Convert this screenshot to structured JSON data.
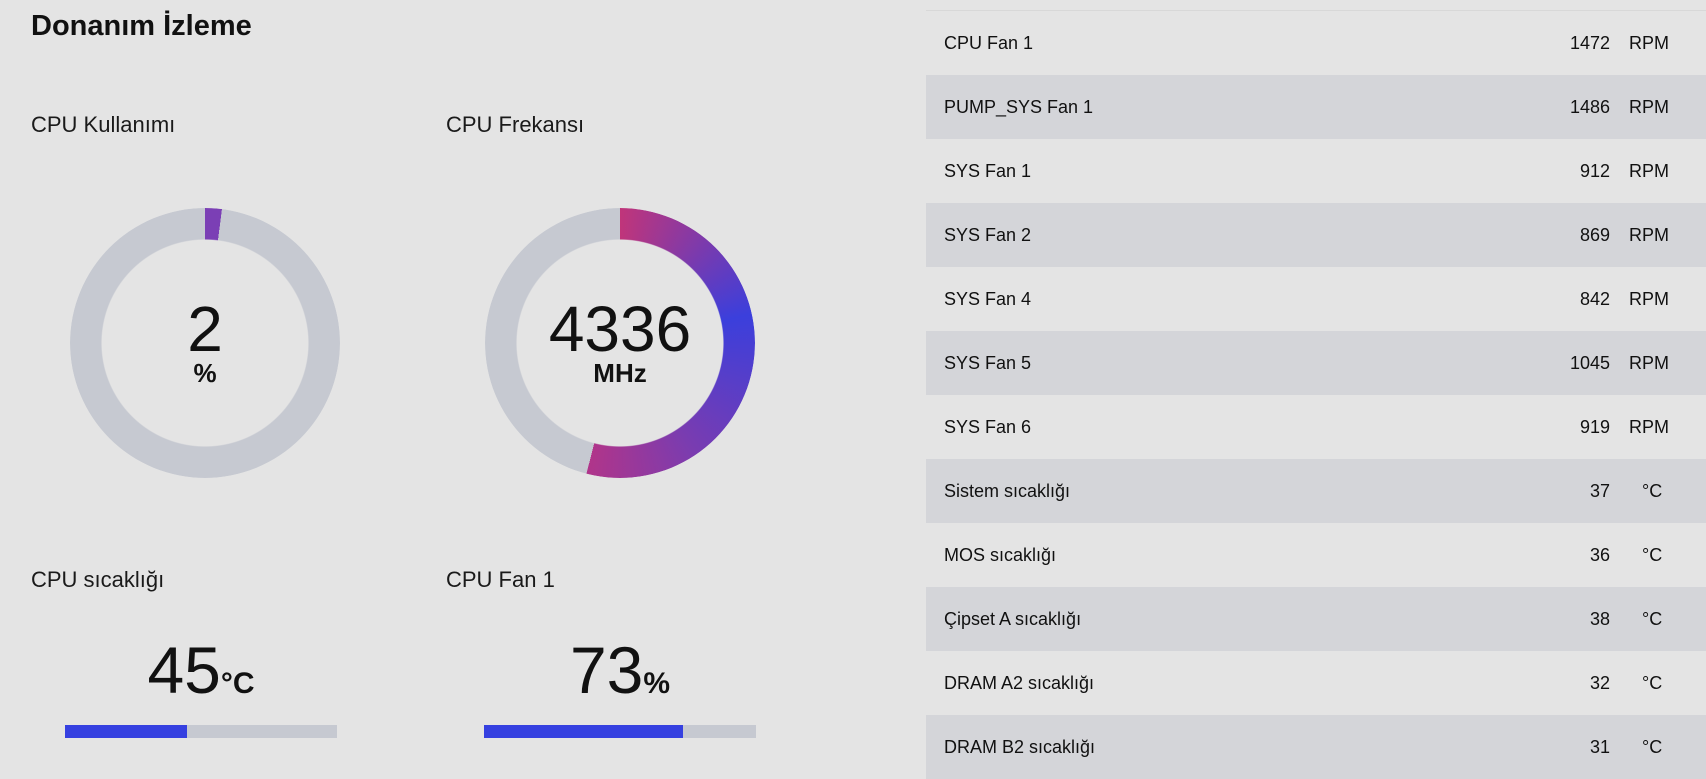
{
  "title": "Donanım İzleme",
  "cpu_usage": {
    "label": "CPU Kullanımı",
    "value": "2",
    "unit": "%",
    "percent": 2,
    "color": "#7b3fb5"
  },
  "cpu_freq": {
    "label": "CPU Frekansı",
    "value": "4336",
    "unit": "MHz",
    "percent": 54,
    "gradient": [
      "#c0357a",
      "#3b3fdc",
      "#7a3cb0",
      "#b0358a"
    ]
  },
  "cpu_temp": {
    "label": "CPU sıcaklığı",
    "value": "45",
    "unit": "°C",
    "percent": 45
  },
  "cpu_fan": {
    "label": "CPU Fan 1",
    "value": "73",
    "unit": "%",
    "percent": 73
  },
  "sensors": [
    {
      "name": "CPU Fan 1",
      "value": "1472",
      "unit": "RPM"
    },
    {
      "name": "PUMP_SYS Fan 1",
      "value": "1486",
      "unit": "RPM"
    },
    {
      "name": "SYS Fan 1",
      "value": "912",
      "unit": "RPM"
    },
    {
      "name": "SYS Fan 2",
      "value": "869",
      "unit": "RPM"
    },
    {
      "name": "SYS Fan 4",
      "value": "842",
      "unit": "RPM"
    },
    {
      "name": "SYS Fan 5",
      "value": "1045",
      "unit": "RPM"
    },
    {
      "name": "SYS Fan 6",
      "value": "919",
      "unit": "RPM"
    },
    {
      "name": "Sistem sıcaklığı",
      "value": "37",
      "unit": "°C"
    },
    {
      "name": "MOS sıcaklığı",
      "value": "36",
      "unit": "°C"
    },
    {
      "name": "Çipset A sıcaklığı",
      "value": "38",
      "unit": "°C"
    },
    {
      "name": "DRAM A2 sıcaklığı",
      "value": "32",
      "unit": "°C"
    },
    {
      "name": "DRAM B2 sıcaklığı",
      "value": "31",
      "unit": "°C"
    }
  ]
}
